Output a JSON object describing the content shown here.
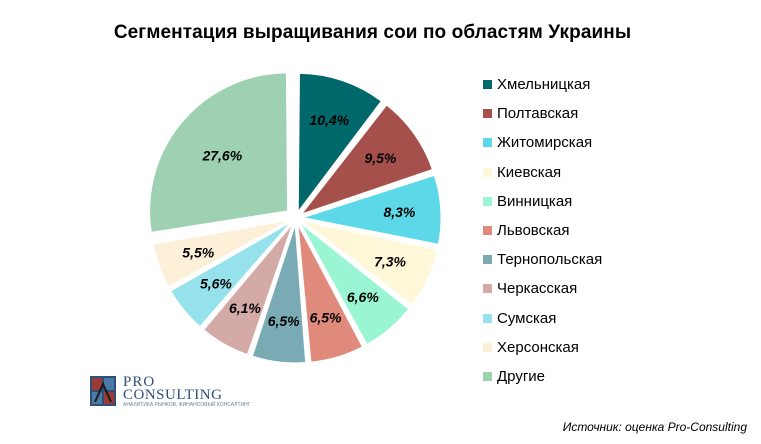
{
  "chart_data": {
    "type": "pie",
    "title": "Сегментация выращивания сои по областям Украины",
    "categories": [
      "Хмельницкая",
      "Полтавская",
      "Житомирская",
      "Киевская",
      "Винницкая",
      "Львовская",
      "Тернопольская",
      "Черкасская",
      "Сумская",
      "Херсонская",
      "Другие"
    ],
    "values": [
      10.4,
      9.5,
      8.3,
      7.3,
      6.6,
      6.5,
      6.5,
      6.1,
      5.6,
      5.5,
      27.6
    ],
    "value_labels": [
      "10,4%",
      "9,5%",
      "8,3%",
      "7,3%",
      "6,6%",
      "6,5%",
      "6,5%",
      "6,1%",
      "5,6%",
      "5,5%",
      "27,6%"
    ],
    "colors": [
      "#00686b",
      "#a5504b",
      "#5dd8e8",
      "#fff8d8",
      "#99f5d2",
      "#e08a7c",
      "#7aaab4",
      "#d4aaa6",
      "#96e2ec",
      "#fdf0d8",
      "#9ed0b2"
    ],
    "start_angle_deg": 0,
    "direction": "clockwise",
    "exploded_slice": "Другие",
    "legend_position": "right"
  },
  "logo": {
    "line1": "PRO",
    "line2": "CONSULTING",
    "tagline": "АНАЛИТИКА РЫНКОВ, ФИНАНСОВЫЙ КОНСАЛТИНГ"
  },
  "source": "Источник: оценка Pro-Consulting"
}
